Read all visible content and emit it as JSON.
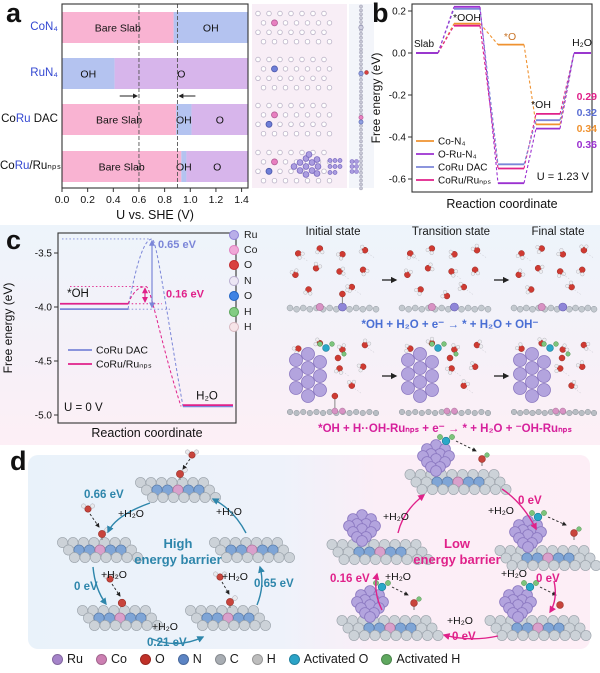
{
  "panel_letters": {
    "a": "a",
    "b": "b",
    "c": "c",
    "d": "d"
  },
  "chart_data": [
    {
      "id": "panel_a",
      "type": "bar",
      "orientation": "horizontal-stacked",
      "xlabel": "U vs. SHE (V)",
      "x_ticks": [
        "0.0",
        "0.2",
        "0.4",
        "0.6",
        "0.8",
        "1.0",
        "1.2",
        "1.4"
      ],
      "x_range": [
        0,
        1.45
      ],
      "guide_lines": [
        0.6,
        0.9
      ],
      "segment_colors": {
        "Bare Slab": "#f9b3d2",
        "OH": "#b4c3f0",
        "O": "#d7b5eb"
      },
      "rows": [
        {
          "label": "CoN₄",
          "label_parts": [
            {
              "text": "CoN₄",
              "color": "#3347d1"
            }
          ],
          "segments": [
            {
              "name": "Bare Slab",
              "from": 0,
              "to": 0.87
            },
            {
              "name": "OH",
              "from": 0.87,
              "to": 1.45
            }
          ]
        },
        {
          "label": "RuN₄",
          "label_parts": [
            {
              "text": "RuN₄",
              "color": "#3347d1"
            }
          ],
          "segments": [
            {
              "name": "OH",
              "from": 0,
              "to": 0.41
            },
            {
              "name": "O",
              "from": 0.41,
              "to": 1.45
            }
          ]
        },
        {
          "label": "CoRu DAC",
          "label_parts": [
            {
              "text": "Co",
              "color": "#111111"
            },
            {
              "text": "Ru",
              "color": "#3347d1"
            },
            {
              "text": " DAC",
              "color": "#111111"
            }
          ],
          "segments": [
            {
              "name": "Bare Slab",
              "from": 0,
              "to": 0.89
            },
            {
              "name": "OH",
              "from": 0.89,
              "to": 1.01
            },
            {
              "name": "O",
              "from": 1.01,
              "to": 1.45
            }
          ]
        },
        {
          "label": "CoRu/Ruₙₚₛ",
          "label_parts": [
            {
              "text": "Co",
              "color": "#111111"
            },
            {
              "text": "Ru",
              "color": "#3347d1"
            },
            {
              "text": "/Ruₙₚₛ",
              "color": "#111111"
            }
          ],
          "segments": [
            {
              "name": "Bare Slab",
              "from": 0,
              "to": 0.93
            },
            {
              "name": "OH",
              "from": 0.93,
              "to": 0.97
            },
            {
              "name": "O",
              "from": 0.97,
              "to": 1.45
            }
          ]
        }
      ]
    },
    {
      "id": "panel_b",
      "type": "line",
      "subtype": "free-energy-steps",
      "ylabel": "Free energy (eV)",
      "xlabel": "Reaction coordinate",
      "ylim": [
        -0.68,
        0.27
      ],
      "y_ticks": [
        {
          "label": "0.2",
          "v": 0.2
        },
        {
          "label": "0.0",
          "v": 0.0
        },
        {
          "label": "-0.2",
          "v": -0.2
        },
        {
          "label": "-0.4",
          "v": -0.4
        },
        {
          "label": "-0.6",
          "v": -0.6
        }
      ],
      "steps": [
        "Slab",
        "*OOH",
        "*O",
        "*OH",
        "H₂O"
      ],
      "state_labels": {
        "slab": "Slab",
        "ooh": "*OOH",
        "o": "*O",
        "oh": "*OH",
        "h2o": "H₂O"
      },
      "o_label_color": "#c87326",
      "series": [
        {
          "name": "Co-N₄",
          "color": "#ef9230",
          "values": [
            0,
            0.14,
            0.04,
            -0.34,
            0
          ]
        },
        {
          "name": "O-Ru-N₄",
          "color": "#9b30d0",
          "values": [
            0,
            0.22,
            -0.62,
            -0.36,
            0
          ]
        },
        {
          "name": "CoRu DAC",
          "color": "#7b86d8",
          "values": [
            0,
            0.21,
            -0.53,
            -0.32,
            0
          ]
        },
        {
          "name": "CoRu/Ruₙₚₛ",
          "color": "#e0218a",
          "values": [
            0,
            0.13,
            -0.55,
            -0.29,
            0
          ]
        }
      ],
      "value_labels": [
        {
          "text": "0.29",
          "color": "#e0218a"
        },
        {
          "text": "0.32",
          "color": "#5b6fd4"
        },
        {
          "text": "0.34",
          "color": "#ef9230"
        },
        {
          "text": "0.36",
          "color": "#9b30d0"
        }
      ],
      "annotation": "U = 1.23 V"
    },
    {
      "id": "panel_c",
      "type": "line",
      "subtype": "activation-barrier",
      "ylabel": "Free energy (eV)",
      "xlabel": "Reaction coordinate",
      "ylim": [
        -5.05,
        -3.3
      ],
      "y_ticks": [
        {
          "label": "-3.5",
          "v": -3.5
        },
        {
          "label": "-4.0",
          "v": -4.0
        },
        {
          "label": "-4.5",
          "v": -4.5
        },
        {
          "label": "-5.0",
          "v": -5.0
        }
      ],
      "series": [
        {
          "name": "CoRu DAC",
          "color": "#7b86d8",
          "oh_level": -4.02,
          "peak": -3.37,
          "h2o_level": -4.92,
          "barrier_label": "0.65 eV"
        },
        {
          "name": "CoRu/Ruₙₚₛ",
          "color": "#e0218a",
          "oh_level": -3.97,
          "peak": -3.81,
          "h2o_level": -4.92,
          "barrier_label": "0.16 eV"
        }
      ],
      "labels": {
        "oh": "*OH",
        "h2o": "H₂O",
        "condition": "U = 0 V"
      }
    }
  ],
  "panel_c": {
    "atom_legend": [
      {
        "label": "Ru",
        "color": "#b9aee8",
        "ring": "#8f82d8"
      },
      {
        "label": "Co",
        "color": "#f0a8d8",
        "ring": "#e07fc1"
      },
      {
        "label": "O",
        "color": "#d94040",
        "ring": "#c3272b"
      },
      {
        "label": "N",
        "color": "#ece6f4",
        "ring": "#b9aed0"
      },
      {
        "label": "O",
        "color": "#3f83e4",
        "ring": "#1f63c4"
      },
      {
        "label": "H",
        "color": "#84cc84",
        "ring": "#57a557"
      },
      {
        "label": "H",
        "color": "#f6e4e8",
        "ring": "#d8b8c0"
      }
    ],
    "state_headers": [
      "Initial state",
      "Transition state",
      "Final state"
    ],
    "equation_dac": "*OH + H₂O + e⁻ → * + H₂O + OH⁻",
    "equation_dac_color": "#4a6fd4",
    "equation_np": "*OH + H··OH-Ruₙₚₛ + e⁻ → * + H₂O + ⁻OH-Ruₙₚₛ",
    "equation_np_color": "#d6219c"
  },
  "panel_d": {
    "water_label": "+H₂O",
    "left": {
      "barriers": [
        "0.66 eV",
        "0 eV",
        "0.21 eV",
        "0.65 eV"
      ],
      "center_line1": "High",
      "center_line2": "energy barrier",
      "accent": "#2e86ab"
    },
    "right": {
      "barriers": [
        "0 eV",
        "0 eV",
        "0 eV",
        "0.16 eV"
      ],
      "center_line1": "Low",
      "center_line2": "energy barrier",
      "accent": "#e0218a"
    },
    "legend": [
      {
        "label": "Ru",
        "color": "#a583c9"
      },
      {
        "label": "Co",
        "color": "#cc7fb2"
      },
      {
        "label": "O",
        "color": "#c03028"
      },
      {
        "label": "N",
        "color": "#5b84c4"
      },
      {
        "label": "C",
        "color": "#a8adb3"
      },
      {
        "label": "H",
        "color": "#bdbdbd"
      },
      {
        "label": "Activated O",
        "color": "#2ba3c7"
      },
      {
        "label": "Activated H",
        "color": "#5fa85f"
      }
    ]
  }
}
